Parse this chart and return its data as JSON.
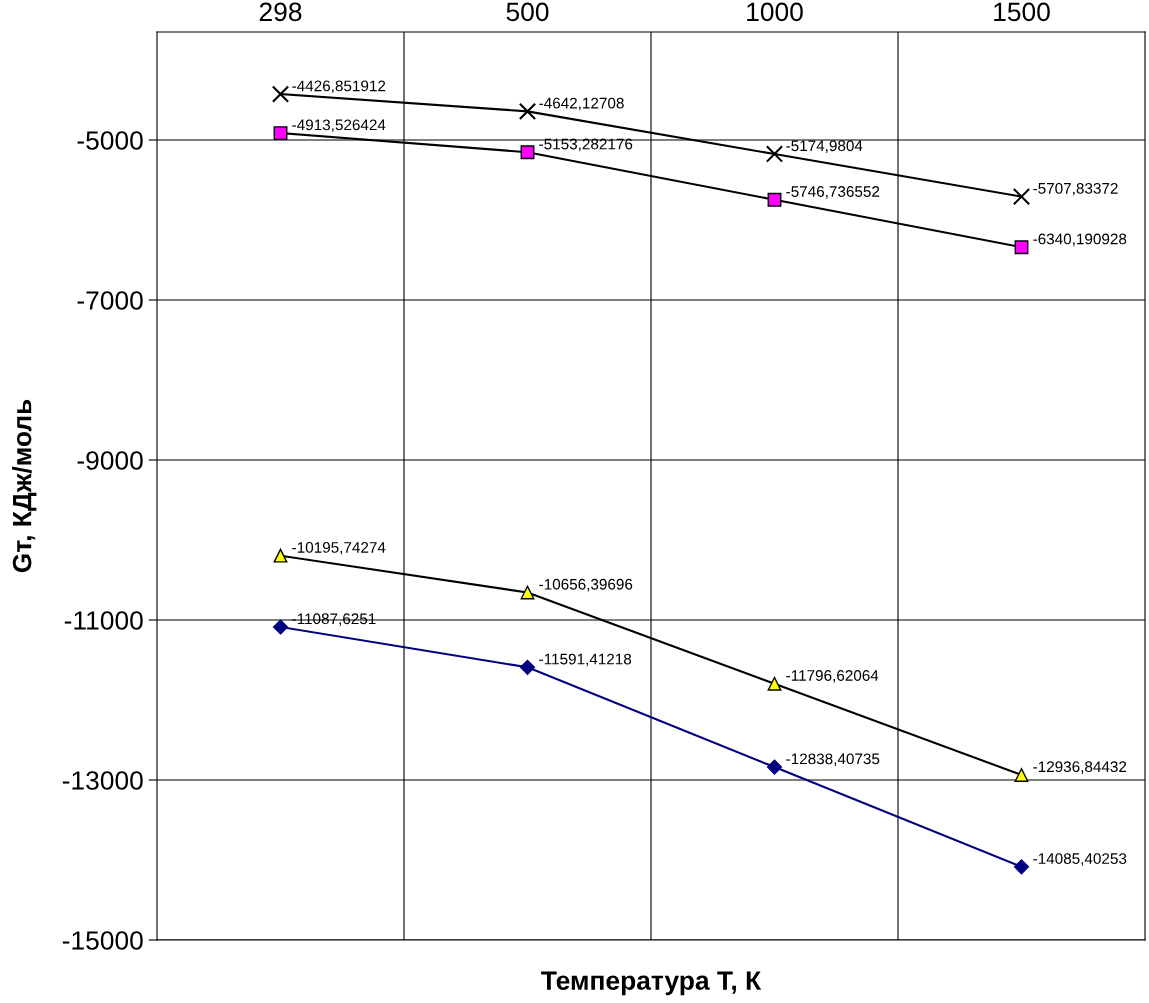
{
  "chart_data": {
    "type": "line",
    "xlabel": "Температура Т, К",
    "ylabel": "Gт, КДж/моль",
    "categories": [
      "298",
      "500",
      "1000",
      "1500"
    ],
    "ylim": [
      -15000,
      -3650
    ],
    "yticks": [
      -15000,
      -13000,
      -11000,
      -9000,
      -7000,
      -5000
    ],
    "grid": true,
    "line_style": "solid",
    "series": [
      {
        "color": "#000000",
        "colors": [
          "#000000",
          "#000000",
          "#000000",
          "#000000"
        ],
        "marker": "cross",
        "values": [
          -4426.851912,
          -4642.12708,
          -5174.9804,
          -5707.83372
        ],
        "value_labels": [
          "-4426,851912",
          "-4642,12708",
          "-5174,9804",
          "-5707,83372"
        ]
      },
      {
        "color": "#000000",
        "colors": [
          "#ff00ff",
          "#ff00ff",
          "#ff00ff",
          "#ff00ff"
        ],
        "marker": "square",
        "values": [
          -4913.526424,
          -5153.282176,
          -5746.736552,
          -6340.190928
        ],
        "value_labels": [
          "-4913,526424",
          "-5153,282176",
          "-5746,736552",
          "-6340,190928"
        ]
      },
      {
        "color": "#000000",
        "colors": [
          "#ffff00",
          "#ffff00",
          "#ffff00",
          "#ffff00"
        ],
        "marker": "triangle",
        "values": [
          -10195.74274,
          -10656.39696,
          -11796.62064,
          -12936.84432
        ],
        "value_labels": [
          "-10195,74274",
          "-10656,39696",
          "-11796,62064",
          "-12936,84432"
        ]
      },
      {
        "color": "#000080",
        "colors": [
          "#000080",
          "#000080",
          "#000080",
          "#000080"
        ],
        "marker": "diamond",
        "values": [
          -11087.6251,
          -11591.41218,
          -12838.40735,
          -14085.40253
        ],
        "value_labels": [
          "-11087,6251",
          "-11591,41218",
          "-12838,40735",
          "-14085,40253"
        ]
      }
    ]
  }
}
